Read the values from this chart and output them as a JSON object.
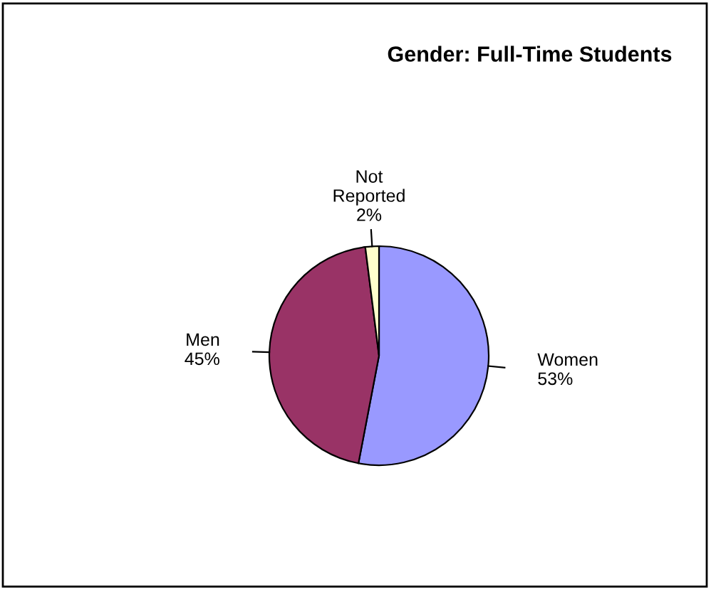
{
  "chart_data": {
    "type": "pie",
    "title": "Gender: Full-Time Students",
    "categories": [
      "Women",
      "Men",
      "Not Reported"
    ],
    "values": [
      53,
      45,
      2
    ],
    "value_labels": [
      "53%",
      "45%",
      "2%"
    ],
    "colors": [
      "#9999ff",
      "#993366",
      "#ffffcc"
    ]
  }
}
